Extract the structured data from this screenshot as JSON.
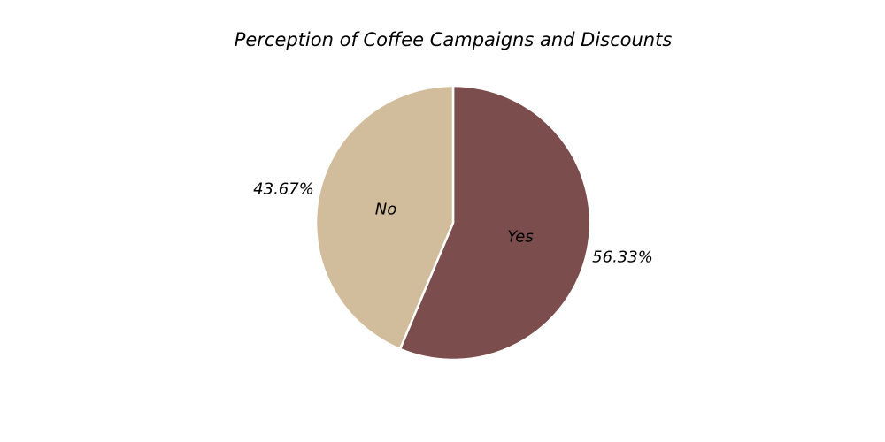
{
  "chart_data": {
    "type": "pie",
    "title": "Perception of Coffee Campaigns and Discounts",
    "slices": [
      {
        "label": "Yes",
        "value": 56.33,
        "pct_text": "56.33%",
        "color": "#7b4d4d"
      },
      {
        "label": "No",
        "value": 43.67,
        "pct_text": "43.67%",
        "color": "#d1bd9b"
      }
    ],
    "start_angle": "top",
    "direction": "clockwise",
    "wedge_edge_color": "#ffffff"
  }
}
